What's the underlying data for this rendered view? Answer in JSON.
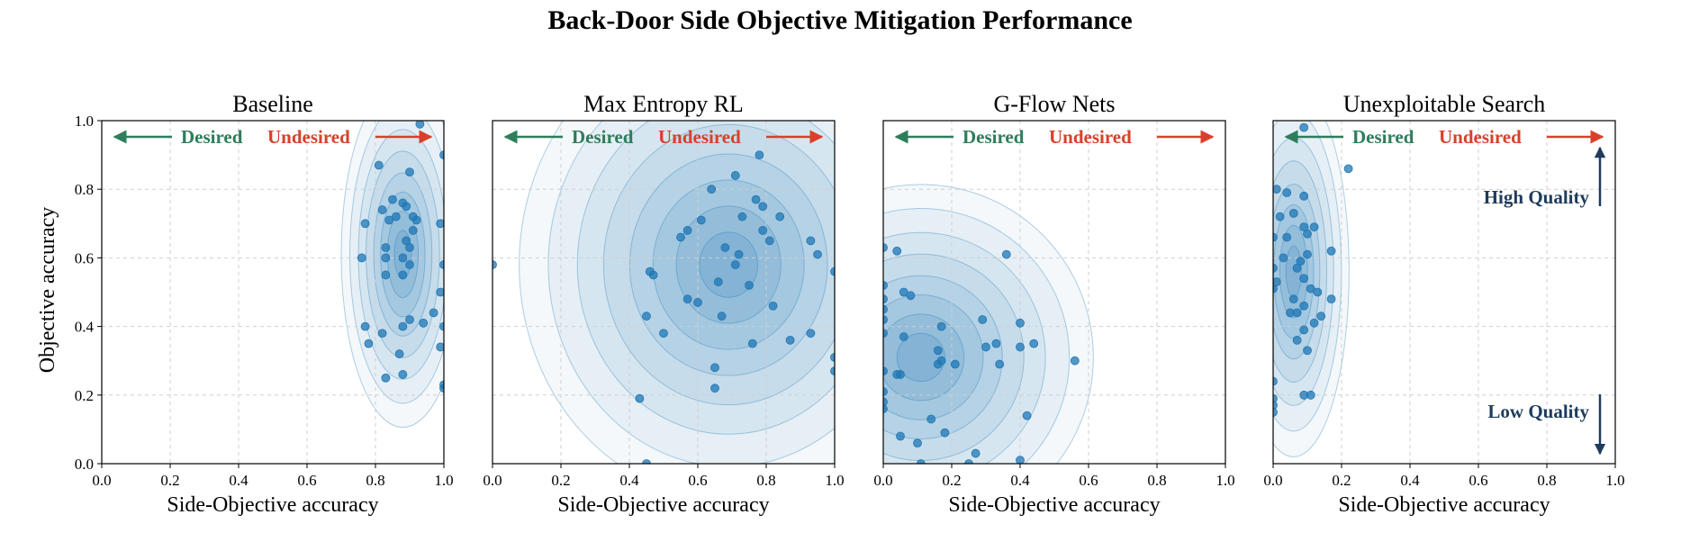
{
  "figure": {
    "title": "Back-Door Side Objective Mitigation Performance",
    "shared_ylabel": "Objective accuracy",
    "colors": {
      "point": "#1f77b4",
      "contour": "#1f77b4",
      "desired": "#2e7d5b",
      "undesired": "#d9402b",
      "quality": "#1f3b5c",
      "grid": "#cfcfcf"
    },
    "annotations": {
      "desired_label": "Desired",
      "undesired_label": "Undesired",
      "high_quality_label": "High Quality",
      "low_quality_label": "Low Quality"
    }
  },
  "chart_data": [
    {
      "type": "scatter",
      "title": "Baseline",
      "xlabel": "Side-Objective accuracy",
      "ylabel": "Objective accuracy",
      "xlim": [
        0,
        1
      ],
      "ylim": [
        0,
        1
      ],
      "xticks": [
        "0.0",
        "0.2",
        "0.4",
        "0.6",
        "0.8",
        "1.0"
      ],
      "yticks": [
        "0.0",
        "0.2",
        "0.4",
        "0.6",
        "0.8",
        "1.0"
      ],
      "grid": true,
      "density_center": [
        0.88,
        0.61
      ],
      "density_spread": [
        0.05,
        0.14
      ],
      "points": [
        [
          0.93,
          0.99
        ],
        [
          1.0,
          0.9
        ],
        [
          0.81,
          0.87
        ],
        [
          0.9,
          0.85
        ],
        [
          0.85,
          0.77
        ],
        [
          0.88,
          0.76
        ],
        [
          0.89,
          0.75
        ],
        [
          0.82,
          0.74
        ],
        [
          0.86,
          0.72
        ],
        [
          0.91,
          0.72
        ],
        [
          0.92,
          0.71
        ],
        [
          0.84,
          0.71
        ],
        [
          0.77,
          0.7
        ],
        [
          0.99,
          0.7
        ],
        [
          0.91,
          0.68
        ],
        [
          0.89,
          0.65
        ],
        [
          0.83,
          0.63
        ],
        [
          0.9,
          0.63
        ],
        [
          0.83,
          0.6
        ],
        [
          0.76,
          0.6
        ],
        [
          0.88,
          0.6
        ],
        [
          0.9,
          0.58
        ],
        [
          1.0,
          0.58
        ],
        [
          0.83,
          0.55
        ],
        [
          0.88,
          0.55
        ],
        [
          0.99,
          0.5
        ],
        [
          0.97,
          0.44
        ],
        [
          0.9,
          0.42
        ],
        [
          0.94,
          0.41
        ],
        [
          0.77,
          0.4
        ],
        [
          0.88,
          0.4
        ],
        [
          0.82,
          0.38
        ],
        [
          1.0,
          0.4
        ],
        [
          0.78,
          0.35
        ],
        [
          0.99,
          0.34
        ],
        [
          0.87,
          0.32
        ],
        [
          0.88,
          0.26
        ],
        [
          0.83,
          0.25
        ],
        [
          1.0,
          0.23
        ],
        [
          1.0,
          0.22
        ]
      ]
    },
    {
      "type": "scatter",
      "title": "Max Entropy RL",
      "xlabel": "Side-Objective accuracy",
      "ylabel": "",
      "xlim": [
        0,
        1
      ],
      "ylim": [
        0,
        1
      ],
      "xticks": [
        "0.0",
        "0.2",
        "0.4",
        "0.6",
        "0.8",
        "1.0"
      ],
      "yticks": [],
      "grid": true,
      "density_center": [
        0.69,
        0.58
      ],
      "density_spread": [
        0.17,
        0.19
      ],
      "points": [
        [
          0.78,
          0.9
        ],
        [
          0.71,
          0.84
        ],
        [
          0.64,
          0.8
        ],
        [
          0.77,
          0.77
        ],
        [
          0.79,
          0.75
        ],
        [
          0.84,
          0.72
        ],
        [
          0.61,
          0.71
        ],
        [
          0.73,
          0.72
        ],
        [
          0.57,
          0.68
        ],
        [
          0.79,
          0.68
        ],
        [
          0.55,
          0.66
        ],
        [
          0.81,
          0.65
        ],
        [
          0.68,
          0.63
        ],
        [
          0.72,
          0.61
        ],
        [
          0.93,
          0.65
        ],
        [
          0.95,
          0.61
        ],
        [
          0.71,
          0.58
        ],
        [
          0.46,
          0.56
        ],
        [
          0.47,
          0.55
        ],
        [
          0.66,
          0.53
        ],
        [
          0.75,
          0.52
        ],
        [
          1.0,
          0.56
        ],
        [
          0.57,
          0.48
        ],
        [
          0.6,
          0.47
        ],
        [
          0.82,
          0.46
        ],
        [
          0.45,
          0.43
        ],
        [
          0.67,
          0.43
        ],
        [
          0.5,
          0.38
        ],
        [
          0.87,
          0.36
        ],
        [
          0.93,
          0.38
        ],
        [
          0.76,
          0.35
        ],
        [
          0.65,
          0.28
        ],
        [
          1.0,
          0.31
        ],
        [
          1.0,
          0.27
        ],
        [
          0.65,
          0.22
        ],
        [
          0.43,
          0.19
        ],
        [
          0.0,
          0.58
        ],
        [
          0.45,
          0.0
        ]
      ]
    },
    {
      "type": "scatter",
      "title": "G-Flow Nets",
      "xlabel": "Side-Objective accuracy",
      "ylabel": "",
      "xlim": [
        0,
        1
      ],
      "ylim": [
        0,
        1
      ],
      "xticks": [
        "0.0",
        "0.2",
        "0.4",
        "0.6",
        "0.8",
        "1.0"
      ],
      "yticks": [],
      "grid": true,
      "density_center": [
        0.11,
        0.31
      ],
      "density_spread": [
        0.14,
        0.14
      ],
      "points": [
        [
          0.04,
          0.62
        ],
        [
          0.0,
          0.63
        ],
        [
          0.36,
          0.61
        ],
        [
          0.0,
          0.52
        ],
        [
          0.06,
          0.5
        ],
        [
          0.08,
          0.49
        ],
        [
          0.0,
          0.48
        ],
        [
          0.0,
          0.45
        ],
        [
          0.0,
          0.42
        ],
        [
          0.17,
          0.4
        ],
        [
          0.29,
          0.42
        ],
        [
          0.4,
          0.41
        ],
        [
          0.06,
          0.37
        ],
        [
          0.0,
          0.38
        ],
        [
          0.44,
          0.35
        ],
        [
          0.4,
          0.34
        ],
        [
          0.33,
          0.35
        ],
        [
          0.3,
          0.34
        ],
        [
          0.16,
          0.33
        ],
        [
          0.17,
          0.3
        ],
        [
          0.16,
          0.29
        ],
        [
          0.21,
          0.29
        ],
        [
          0.0,
          0.27
        ],
        [
          0.04,
          0.26
        ],
        [
          0.05,
          0.26
        ],
        [
          0.56,
          0.3
        ],
        [
          0.34,
          0.29
        ],
        [
          0.0,
          0.21
        ],
        [
          0.0,
          0.18
        ],
        [
          0.0,
          0.16
        ],
        [
          0.42,
          0.14
        ],
        [
          0.14,
          0.13
        ],
        [
          0.05,
          0.08
        ],
        [
          0.18,
          0.09
        ],
        [
          0.1,
          0.06
        ],
        [
          0.27,
          0.03
        ],
        [
          0.25,
          0.0
        ],
        [
          0.4,
          0.01
        ],
        [
          0.11,
          0.0
        ]
      ]
    },
    {
      "type": "scatter",
      "title": "Unexploitable Search",
      "xlabel": "Side-Objective accuracy",
      "ylabel": "",
      "xlim": [
        0,
        1
      ],
      "ylim": [
        0,
        1
      ],
      "xticks": [
        "0.0",
        "0.2",
        "0.4",
        "0.6",
        "0.8",
        "1.0"
      ],
      "yticks": [],
      "grid": true,
      "density_center": [
        0.06,
        0.56
      ],
      "density_spread": [
        0.045,
        0.15
      ],
      "points": [
        [
          0.09,
          0.98
        ],
        [
          0.22,
          0.86
        ],
        [
          0.01,
          0.8
        ],
        [
          0.04,
          0.79
        ],
        [
          0.09,
          0.78
        ],
        [
          0.06,
          0.73
        ],
        [
          0.02,
          0.72
        ],
        [
          0.09,
          0.69
        ],
        [
          0.12,
          0.69
        ],
        [
          0.1,
          0.67
        ],
        [
          0.0,
          0.66
        ],
        [
          0.04,
          0.66
        ],
        [
          0.1,
          0.61
        ],
        [
          0.17,
          0.62
        ],
        [
          0.03,
          0.6
        ],
        [
          0.08,
          0.59
        ],
        [
          0.07,
          0.57
        ],
        [
          0.0,
          0.57
        ],
        [
          0.09,
          0.54
        ],
        [
          0.01,
          0.53
        ],
        [
          0.11,
          0.51
        ],
        [
          0.0,
          0.51
        ],
        [
          0.13,
          0.5
        ],
        [
          0.06,
          0.48
        ],
        [
          0.17,
          0.48
        ],
        [
          0.09,
          0.46
        ],
        [
          0.05,
          0.44
        ],
        [
          0.07,
          0.44
        ],
        [
          0.14,
          0.43
        ],
        [
          0.12,
          0.41
        ],
        [
          0.09,
          0.39
        ],
        [
          0.07,
          0.36
        ],
        [
          0.1,
          0.33
        ],
        [
          0.0,
          0.24
        ],
        [
          0.09,
          0.2
        ],
        [
          0.11,
          0.2
        ],
        [
          0.0,
          0.19
        ],
        [
          0.0,
          0.17
        ],
        [
          0.0,
          0.15
        ]
      ]
    }
  ]
}
